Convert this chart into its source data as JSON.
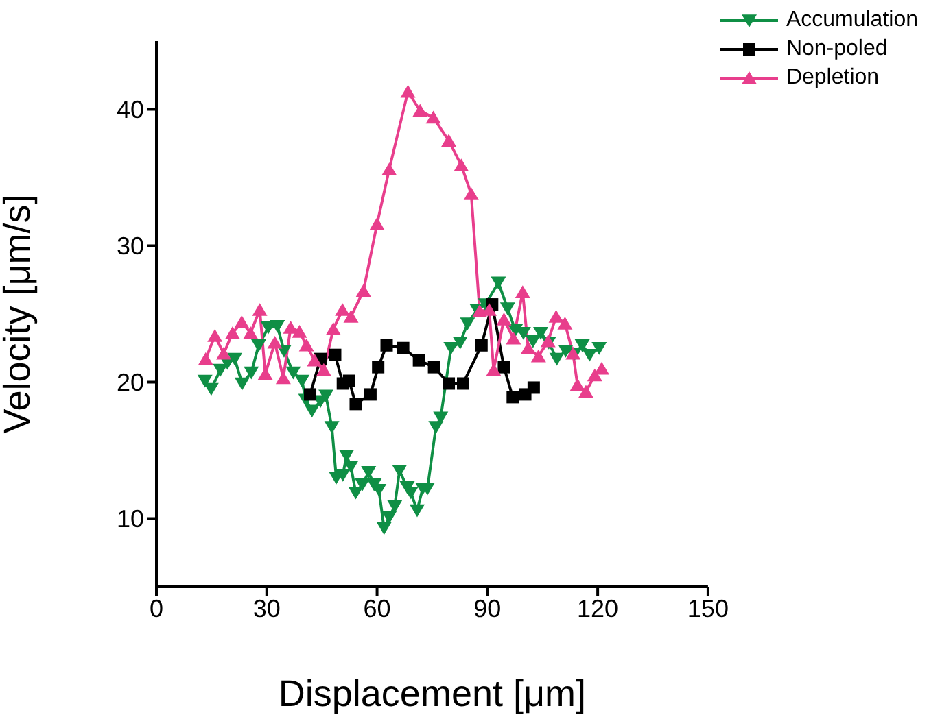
{
  "chart_data": {
    "type": "line",
    "xlabel": "Displacement [μm]",
    "ylabel": "Velocity [μm/s]",
    "xlim": [
      0,
      150
    ],
    "xticks": [
      0,
      30,
      60,
      90,
      120,
      150
    ],
    "ylim": [
      5,
      45
    ],
    "yticks": [
      10,
      20,
      30,
      40
    ],
    "grid": false,
    "legend": "top right",
    "line_style": "solid",
    "series": [
      {
        "name": "Accumulation",
        "color": "#0f8f45",
        "marker": "triangle-down",
        "x": [
          13.2,
          14.9,
          17.4,
          19.3,
          21.3,
          23.3,
          25.8,
          27.8,
          30.4,
          32.9,
          34.7,
          37.2,
          39.6,
          40.6,
          42.3,
          44.6,
          46.1,
          47.7,
          48.9,
          50.7,
          51.7,
          52.9,
          54.2,
          56.0,
          57.7,
          59.2,
          60.5,
          61.9,
          63.3,
          64.8,
          66.1,
          68.2,
          69.2,
          70.9,
          72.4,
          73.7,
          76.0,
          77.3,
          80.1,
          82.6,
          84.6,
          87.2,
          89.5,
          93.0,
          95.5,
          97.6,
          99.8,
          102.4,
          104.5,
          106.7,
          108.9,
          111.3,
          113.8,
          115.8,
          117.8,
          120.4
        ],
        "values": [
          20.1,
          19.5,
          20.9,
          21.4,
          21.7,
          19.9,
          20.7,
          22.7,
          24.0,
          24.1,
          22.3,
          20.7,
          20.1,
          18.7,
          17.9,
          18.6,
          19.0,
          16.7,
          13.0,
          13.2,
          14.6,
          13.8,
          11.9,
          12.5,
          13.4,
          12.5,
          12.1,
          9.3,
          10.1,
          10.9,
          13.5,
          12.3,
          11.9,
          10.6,
          12.2,
          12.2,
          16.7,
          17.4,
          22.5,
          22.9,
          24.3,
          25.3,
          25.7,
          27.3,
          25.4,
          23.8,
          23.6,
          23.0,
          23.6,
          22.9,
          21.7,
          22.3,
          22.1,
          22.7,
          22.0,
          22.5
        ]
      },
      {
        "name": "Non-poled",
        "color": "#000000",
        "marker": "square",
        "x": [
          41.8,
          44.6,
          48.6,
          50.7,
          52.4,
          54.2,
          58.2,
          60.3,
          62.6,
          67.1,
          71.4,
          75.5,
          79.5,
          83.4,
          88.4,
          91.3,
          94.5,
          96.9,
          100.3,
          102.6
        ],
        "values": [
          19.1,
          21.7,
          22.0,
          19.9,
          20.1,
          18.4,
          19.1,
          21.1,
          22.7,
          22.5,
          21.6,
          21.1,
          19.9,
          19.9,
          22.7,
          25.7,
          21.1,
          18.9,
          19.1,
          19.6
        ]
      },
      {
        "name": "Depletion",
        "color": "#e83e8c",
        "marker": "triangle",
        "x": [
          13.4,
          15.9,
          18.3,
          20.7,
          23.2,
          25.6,
          28.1,
          29.6,
          32.2,
          34.5,
          36.5,
          38.9,
          40.8,
          43.0,
          45.5,
          48.1,
          50.6,
          52.9,
          56.3,
          60.0,
          63.3,
          68.4,
          71.7,
          75.3,
          79.5,
          82.9,
          85.6,
          87.9,
          90.5,
          91.7,
          94.5,
          97.1,
          99.6,
          101.1,
          103.9,
          106.5,
          108.7,
          111.1,
          113.3,
          114.5,
          116.8,
          119.2,
          121.1
        ],
        "values": [
          21.7,
          23.4,
          22.1,
          23.6,
          24.4,
          23.6,
          25.3,
          20.6,
          22.9,
          20.3,
          24.0,
          23.7,
          22.7,
          21.6,
          20.9,
          23.9,
          25.3,
          24.8,
          26.7,
          31.6,
          35.6,
          41.3,
          39.9,
          39.4,
          37.7,
          35.9,
          33.8,
          25.2,
          25.3,
          20.9,
          24.6,
          23.2,
          26.6,
          22.5,
          21.9,
          23.0,
          24.8,
          24.3,
          22.1,
          19.8,
          19.3,
          20.5,
          21.0
        ]
      }
    ]
  }
}
